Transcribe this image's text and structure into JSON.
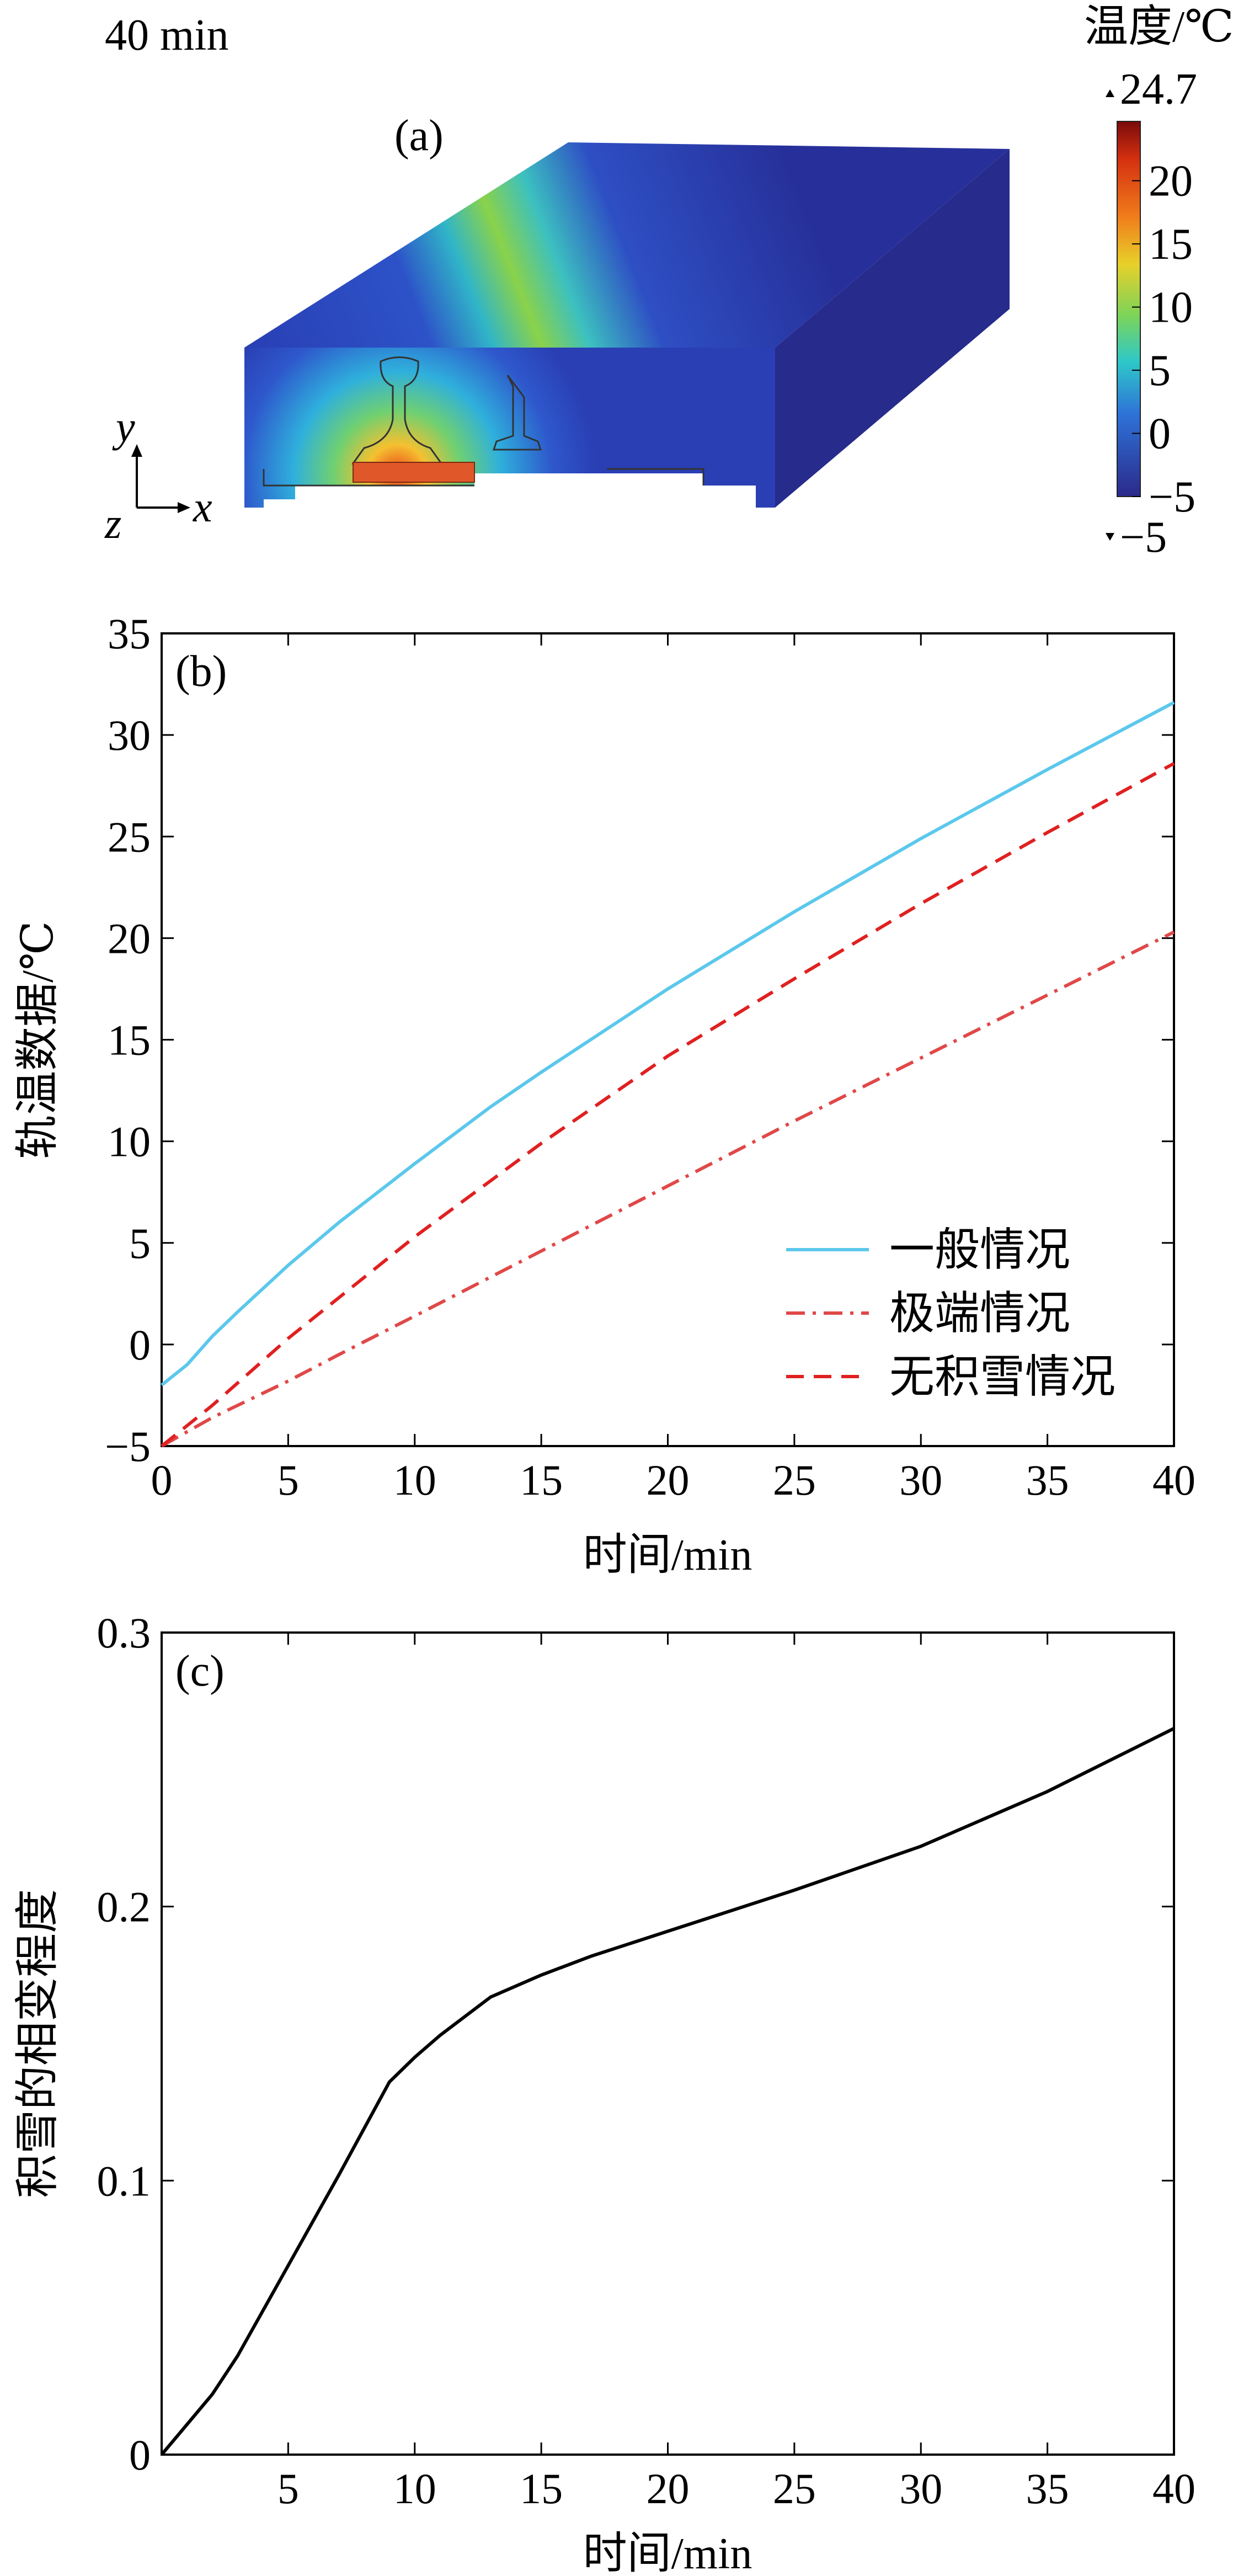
{
  "panel_a": {
    "time_label": "40 min",
    "panel_tag": "(a)",
    "axis_y": "y",
    "axis_x": "x",
    "axis_z": "z",
    "colorbar": {
      "title": "温度/℃",
      "max_label": "24.7",
      "min_label": "−5",
      "ticks": [
        "20",
        "15",
        "10",
        "5",
        "0",
        "−5"
      ],
      "range": [
        -5,
        24.7
      ]
    }
  },
  "chart_data": [
    {
      "type": "line",
      "panel_tag": "(b)",
      "xlabel": "时间/min",
      "ylabel": "轨温数据/℃",
      "xlim": [
        0,
        40
      ],
      "ylim": [
        -5,
        35
      ],
      "xticks": [
        0,
        5,
        10,
        15,
        20,
        25,
        30,
        35,
        40
      ],
      "yticks": [
        -5,
        0,
        5,
        10,
        15,
        20,
        25,
        30,
        35
      ],
      "xtick_labels": [
        "0",
        "5",
        "10",
        "15",
        "20",
        "25",
        "30",
        "35",
        "40"
      ],
      "ytick_labels": [
        "−5",
        "0",
        "5",
        "10",
        "15",
        "20",
        "25",
        "30",
        "35"
      ],
      "legend_position": "lower-right",
      "series": [
        {
          "name": "一般情况",
          "color": "#5bc8ec",
          "style": "solid",
          "x": [
            0,
            1,
            2,
            3,
            5,
            7,
            10,
            13,
            15,
            20,
            25,
            30,
            35,
            40
          ],
          "y": [
            -2.0,
            -1.0,
            0.4,
            1.6,
            3.9,
            6.0,
            8.9,
            11.7,
            13.4,
            17.5,
            21.3,
            24.9,
            28.3,
            31.6
          ]
        },
        {
          "name": "极端情况",
          "color": "#e04848",
          "style": "dashdot",
          "x": [
            0,
            1,
            2,
            3,
            5,
            7,
            10,
            15,
            20,
            25,
            30,
            35,
            40
          ],
          "y": [
            -5.0,
            -4.3,
            -3.6,
            -3.0,
            -1.8,
            -0.5,
            1.4,
            4.6,
            7.8,
            11.0,
            14.1,
            17.2,
            20.3
          ]
        },
        {
          "name": "无积雪情况",
          "color": "#e02020",
          "style": "dashed",
          "x": [
            0,
            1,
            2,
            3,
            5,
            7,
            10,
            15,
            20,
            25,
            30,
            35,
            40
          ],
          "y": [
            -5.0,
            -4.0,
            -3.0,
            -1.9,
            0.3,
            2.3,
            5.3,
            9.9,
            14.2,
            18.0,
            21.7,
            25.2,
            28.6
          ]
        }
      ]
    },
    {
      "type": "line",
      "panel_tag": "(c)",
      "xlabel": "时间/min",
      "ylabel": "积雪的相变程度",
      "xlim": [
        0,
        40
      ],
      "ylim": [
        0,
        0.3
      ],
      "xticks": [
        0,
        5,
        10,
        15,
        20,
        25,
        30,
        35,
        40
      ],
      "yticks": [
        0,
        0.1,
        0.2,
        0.3
      ],
      "xtick_labels": [
        "",
        "5",
        "10",
        "15",
        "20",
        "25",
        "30",
        "35",
        "40"
      ],
      "ytick_labels": [
        "0",
        "0.1",
        "0.2",
        "0.3"
      ],
      "series": [
        {
          "color": "#000000",
          "style": "solid",
          "x": [
            0,
            1,
            2,
            3,
            5,
            7,
            9,
            10,
            11,
            13,
            15,
            17,
            20,
            25,
            30,
            35,
            40
          ],
          "y": [
            0,
            0.011,
            0.022,
            0.036,
            0.069,
            0.102,
            0.136,
            0.145,
            0.153,
            0.167,
            0.175,
            0.182,
            0.191,
            0.206,
            0.222,
            0.242,
            0.265
          ]
        }
      ]
    }
  ]
}
